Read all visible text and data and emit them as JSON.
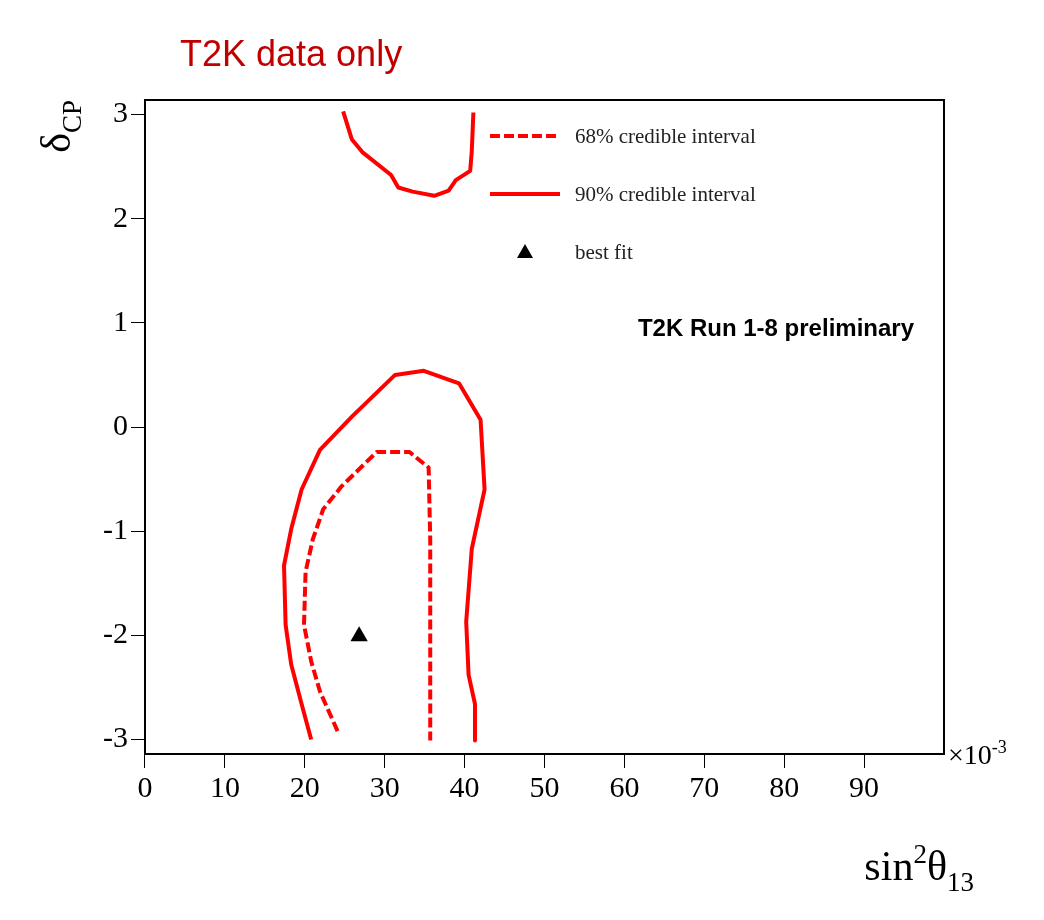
{
  "chart_data": {
    "type": "line",
    "title": "T2K data only",
    "xlabel": "sin$^{2}$θ$_{13}$",
    "ylabel": "δ$_{CP}$",
    "xlim": [
      0,
      100
    ],
    "xticks": [
      0,
      10,
      20,
      30,
      40,
      50,
      60,
      70,
      80,
      90
    ],
    "ylim": [
      -3.14,
      3.14
    ],
    "yticks": [
      -3,
      -2,
      -1,
      0,
      1,
      2,
      3
    ],
    "grid": false,
    "legend": "top right",
    "annotations": [
      "T2K Run 1-8 preliminary",
      "×10$^{-3}$"
    ],
    "series": [
      {
        "name": "68% credible interval",
        "type": "line",
        "line_style": "dashed",
        "color": "#ff0000",
        "x": [
          24.1,
          21.9,
          20.8,
          19.9,
          20.1,
          21.0,
          22.3,
          24.6,
          29.0,
          33.1,
          35.5,
          35.7,
          35.7
        ],
        "values": [
          -2.92,
          -2.54,
          -2.25,
          -1.9,
          -1.39,
          -1.08,
          -0.79,
          -0.57,
          -0.24,
          -0.24,
          -0.39,
          -1.08,
          -3.01
        ]
      },
      {
        "name": "90% credible interval",
        "type": "line",
        "line_style": "solid",
        "color": "#ff0000",
        "x": [
          24.8,
          25.9,
          27.2,
          30.8,
          31.7,
          33.5,
          36.2,
          38.0,
          38.9,
          40.7,
          40.9,
          41.1,
          null,
          20.8,
          19.6,
          18.3,
          17.6,
          17.4,
          18.3,
          19.6,
          21.9,
          25.9,
          31.3,
          34.9,
          39.3,
          42.0,
          42.5,
          40.9,
          40.2,
          40.5,
          41.3,
          41.3
        ],
        "values": [
          3.03,
          2.76,
          2.64,
          2.42,
          2.3,
          2.26,
          2.22,
          2.27,
          2.37,
          2.46,
          2.65,
          3.02,
          null,
          -3.0,
          -2.66,
          -2.28,
          -1.9,
          -1.33,
          -0.98,
          -0.6,
          -0.22,
          0.1,
          0.5,
          0.54,
          0.42,
          0.07,
          -0.6,
          -1.17,
          -1.87,
          -2.38,
          -2.66,
          -3.01
        ]
      },
      {
        "name": "best fit",
        "type": "scatter",
        "marker": "triangle",
        "color": "#000000",
        "x": [
          26.8
        ],
        "values": [
          -2.01
        ]
      }
    ]
  }
}
